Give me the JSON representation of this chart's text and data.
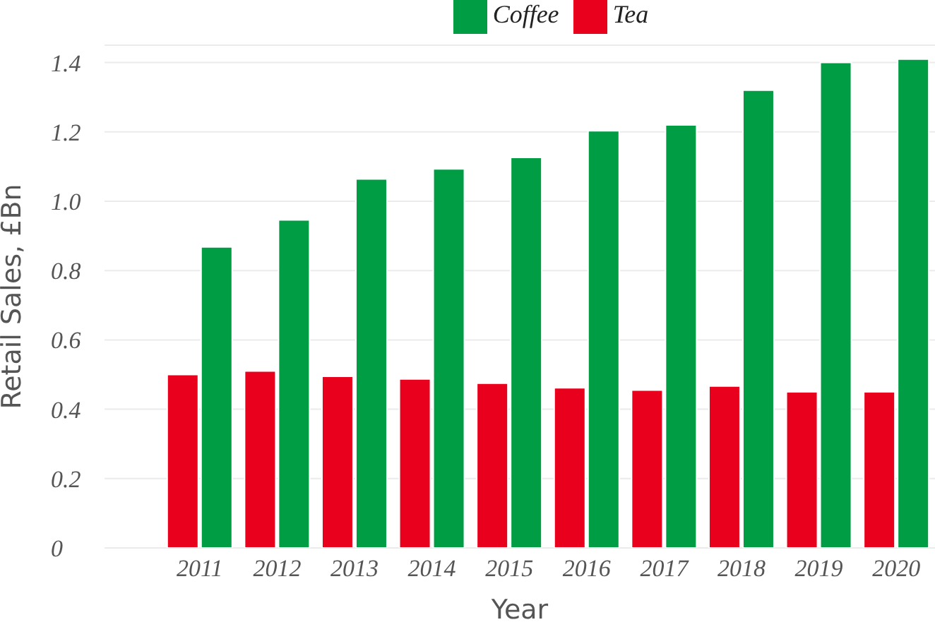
{
  "chart_data": {
    "type": "bar",
    "xlabel": "Year",
    "ylabel": "Retail Sales, £Bn",
    "categories": [
      "2011",
      "2012",
      "2013",
      "2014",
      "2015",
      "2016",
      "2017",
      "2018",
      "2019",
      "2020"
    ],
    "series": [
      {
        "name": "Tea",
        "color": "#e8001c",
        "values": [
          0.5,
          0.51,
          0.495,
          0.487,
          0.475,
          0.462,
          0.455,
          0.467,
          0.45,
          0.45
        ]
      },
      {
        "name": "Coffee",
        "color": "#009d45",
        "values": [
          0.868,
          0.946,
          1.064,
          1.093,
          1.126,
          1.203,
          1.22,
          1.32,
          1.4,
          1.41
        ]
      }
    ],
    "ylim": [
      0,
      1.45
    ],
    "yticks": [
      {
        "value": 0,
        "label": "0"
      },
      {
        "value": 0.2,
        "label": "0.2"
      },
      {
        "value": 0.4,
        "label": "0.4"
      },
      {
        "value": 0.6,
        "label": "0.6"
      },
      {
        "value": 0.8,
        "label": "0.8"
      },
      {
        "value": 1,
        "label": "1.0"
      },
      {
        "value": 1.2,
        "label": "1.2"
      },
      {
        "value": 1.4,
        "label": "1.4"
      }
    ],
    "grid": "y",
    "legend": "top"
  }
}
